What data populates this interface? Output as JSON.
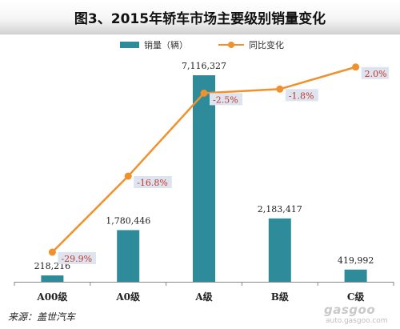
{
  "chart_data": {
    "type": "bar",
    "title": "图3、2015年轿车市场主要级别销量变化",
    "categories": [
      "A00级",
      "A0级",
      "A级",
      "B级",
      "C级"
    ],
    "series": [
      {
        "name": "销量（辆）",
        "type": "bar",
        "values": [
          218216,
          1780446,
          7116327,
          2183417,
          419992
        ],
        "labels": [
          "218,216",
          "1,780,446",
          "7,116,327",
          "2,183,417",
          "419,992"
        ],
        "color": "#2e8b9a"
      },
      {
        "name": "同比变化",
        "type": "line",
        "values": [
          -29.9,
          -16.8,
          -2.5,
          -1.8,
          2.0
        ],
        "labels": [
          "-29.9%",
          "-16.8%",
          "-2.5%",
          "-1.8%",
          "2.0%"
        ],
        "color": "#f0912c"
      }
    ],
    "bar_ylim": [
      0,
      8000000
    ],
    "line_ylim": [
      -35,
      5
    ],
    "legend": "top-center",
    "grid": false
  },
  "source": "来源：盖世汽车",
  "watermark": {
    "logo": "gasgoo",
    "url": "auto.gasgoo.com"
  }
}
